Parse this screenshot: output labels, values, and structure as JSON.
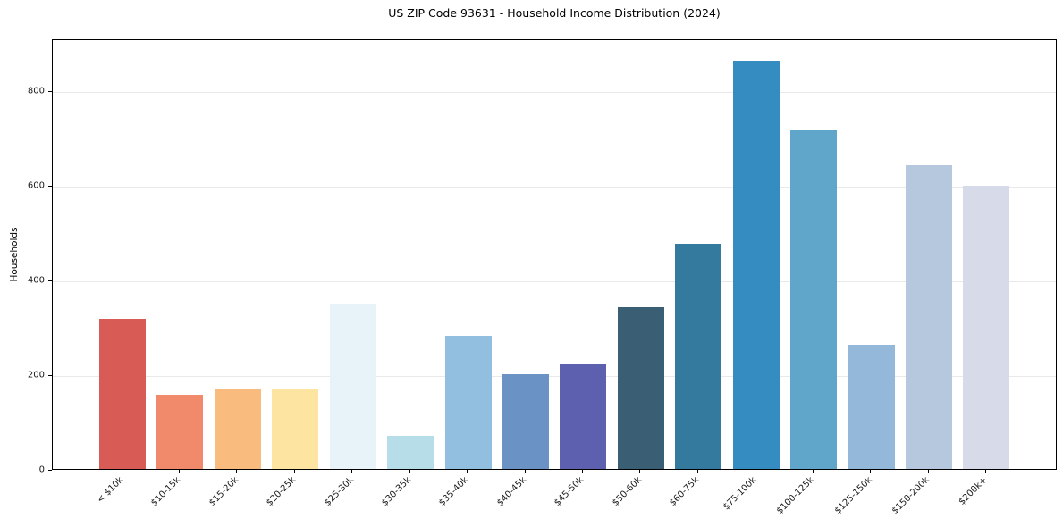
{
  "figure": {
    "background": "#ffffff",
    "axis_color": "#000000",
    "grid_color": "#e9e9e9",
    "text_color": "#1a1a1a"
  },
  "chart_data": {
    "type": "bar",
    "title": "US ZIP Code 93631 - Household Income Distribution (2024)",
    "xlabel": "",
    "ylabel": "Households",
    "categories": [
      "< $10k",
      "$10-15k",
      "$15-20k",
      "$20-25k",
      "$25-30k",
      "$30-35k",
      "$35-40k",
      "$40-45k",
      "$45-50k",
      "$50-60k",
      "$60-75k",
      "$75-100k",
      "$100-125k",
      "$125-150k",
      "$150-200k",
      "$200k+"
    ],
    "values": [
      318,
      157,
      168,
      168,
      350,
      70,
      281,
      201,
      221,
      342,
      476,
      862,
      716,
      262,
      641,
      599
    ],
    "bar_colors": [
      "#d85c55",
      "#f08a6a",
      "#fabc7e",
      "#fde4a0",
      "#e7f3f8",
      "#b7dde8",
      "#92bfdf",
      "#6b92c5",
      "#5c60ae",
      "#3a5f74",
      "#337a9e",
      "#348cc0",
      "#60a5ca",
      "#93b8d9",
      "#b5c8dd",
      "#d7dae8"
    ],
    "yticks": [
      0,
      200,
      400,
      600,
      800
    ],
    "ylim": [
      0,
      910
    ],
    "grid": true,
    "legend_position": "none"
  }
}
